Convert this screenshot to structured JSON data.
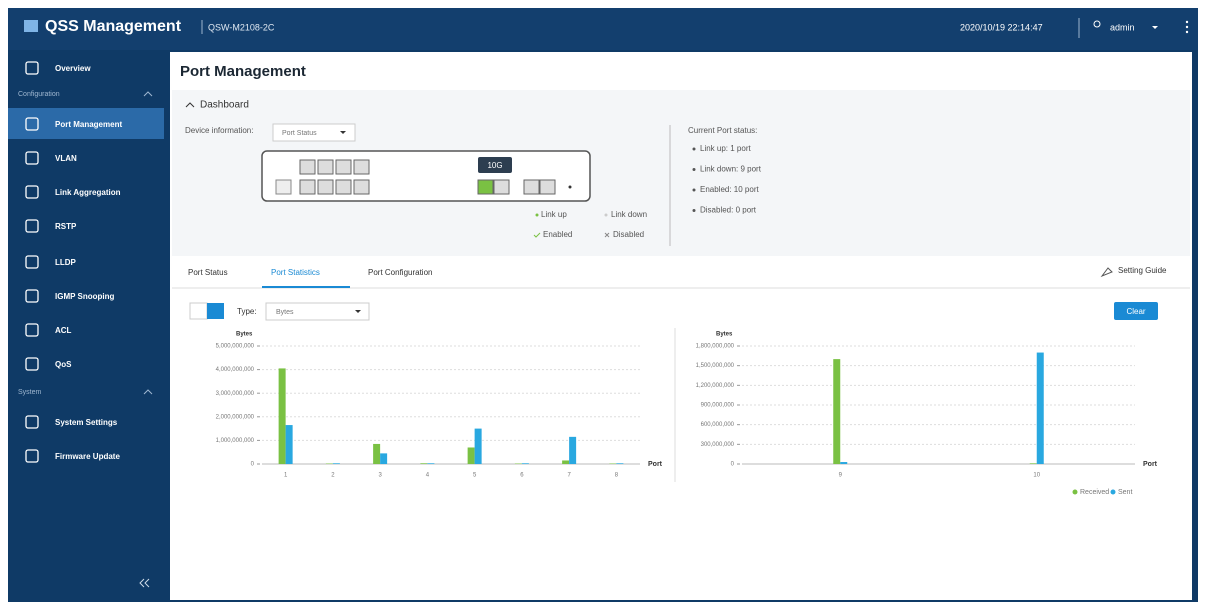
{
  "header": {
    "title": "QSS Management",
    "model": "QSW-M2108-2C",
    "datetime": "2020/10/19 22:14:47",
    "user": "admin"
  },
  "sidebar": {
    "overview": "Overview",
    "sections": [
      {
        "title": "Configuration",
        "items": [
          "Port Management",
          "VLAN",
          "Link Aggregation",
          "RSTP",
          "LLDP",
          "IGMP Snooping",
          "ACL",
          "QoS"
        ]
      },
      {
        "title": "System",
        "items": [
          "System Settings",
          "Firmware Update"
        ]
      }
    ]
  },
  "page": {
    "title": "Port Management",
    "dashboard": "Dashboard",
    "device_info_label": "Device information:",
    "device_info_select": "Port Status",
    "port_badge": "10G",
    "legend": [
      "Link up",
      "Link down",
      "Enabled",
      "Disabled"
    ],
    "status_title": "Current Port status:",
    "status_items": [
      "Link up:  1 port",
      "Link down:  9 port",
      "Enabled:  10 port",
      "Disabled:  0 port"
    ],
    "tabs": [
      "Port Status",
      "Port Statistics",
      "Port Configuration"
    ],
    "setting_guide": "Setting Guide",
    "type_label": "Type:",
    "type_select": "Bytes",
    "clear": "Clear"
  },
  "chart_data": [
    {
      "type": "bar",
      "y_label": "Bytes",
      "x_label": "Port",
      "categories": [
        "1",
        "2",
        "3",
        "4",
        "5",
        "6",
        "7",
        "8"
      ],
      "series": [
        {
          "name": "Received",
          "color": "#7ac143",
          "values": [
            4050000000,
            20000000,
            850000000,
            30000000,
            700000000,
            20000000,
            150000000,
            20000000
          ]
        },
        {
          "name": "Sent",
          "color": "#29a8e0",
          "values": [
            1650000000,
            30000000,
            450000000,
            30000000,
            1500000000,
            30000000,
            1150000000,
            30000000
          ]
        }
      ],
      "ylim": [
        0,
        5000000000
      ],
      "yticks": [
        0,
        {
          "value": 1000000000,
          "label": "1,000,000,000"
        },
        {
          "value": 2000000000,
          "label": "2,000,000,000"
        },
        {
          "value": 3000000000,
          "label": "3,000,000,000"
        },
        {
          "value": 4000000000,
          "label": "4,000,000,000"
        },
        {
          "value": 5000000000,
          "label": "5,000,000,000"
        }
      ],
      "grid": true
    },
    {
      "type": "bar",
      "y_label": "Bytes",
      "x_label": "Port",
      "categories": [
        "9",
        "10"
      ],
      "series": [
        {
          "name": "Received",
          "color": "#7ac143",
          "values": [
            1600000000,
            10000000
          ]
        },
        {
          "name": "Sent",
          "color": "#29a8e0",
          "values": [
            30000000,
            1700000000
          ]
        }
      ],
      "ylim": [
        0,
        1800000000
      ],
      "yticks": [
        0,
        {
          "value": 300000000,
          "label": "300,000,000"
        },
        {
          "value": 600000000,
          "label": "600,000,000"
        },
        {
          "value": 900000000,
          "label": "900,000,000"
        },
        {
          "value": 1200000000,
          "label": "1,200,000,000"
        },
        {
          "value": 1500000000,
          "label": "1,500,000,000"
        },
        {
          "value": 1800000000,
          "label": "1,800,000,000"
        }
      ],
      "grid": true,
      "legend": "bottom-right"
    }
  ]
}
